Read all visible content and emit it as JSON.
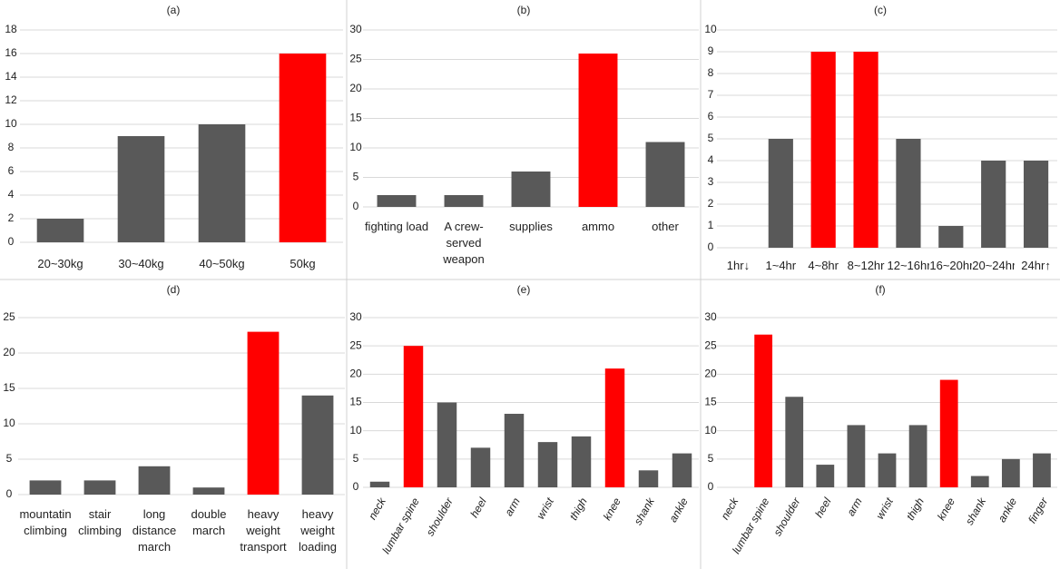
{
  "chart_data": [
    {
      "type": "bar",
      "title": "(a)",
      "categories": [
        "20~30kg",
        "30~40kg",
        "40~50kg",
        "50kg"
      ],
      "values": [
        2,
        9,
        10,
        16
      ],
      "colors": [
        "#595959",
        "#595959",
        "#595959",
        "#ff0000"
      ],
      "ylim": [
        0,
        18
      ],
      "yticks": [
        0,
        2,
        4,
        6,
        8,
        10,
        12,
        14,
        16,
        18
      ],
      "grid": true
    },
    {
      "type": "bar",
      "title": "(b)",
      "categories": [
        "fighting load",
        "A crew-served weapon",
        "supplies",
        "ammo",
        "other"
      ],
      "values": [
        2,
        2,
        6,
        26,
        11
      ],
      "colors": [
        "#595959",
        "#595959",
        "#595959",
        "#ff0000",
        "#595959"
      ],
      "ylim": [
        0,
        30
      ],
      "yticks": [
        0,
        5,
        10,
        15,
        20,
        25,
        30
      ],
      "grid": true
    },
    {
      "type": "bar",
      "title": "(c)",
      "categories": [
        "1hr↓",
        "1~4hr",
        "4~8hr",
        "8~12hr",
        "12~16hr",
        "16~20hr",
        "20~24hr",
        "24hr↑"
      ],
      "values": [
        0,
        5,
        9,
        9,
        5,
        1,
        4,
        4
      ],
      "colors": [
        "#595959",
        "#595959",
        "#ff0000",
        "#ff0000",
        "#595959",
        "#595959",
        "#595959",
        "#595959"
      ],
      "ylim": [
        0,
        10
      ],
      "yticks": [
        0,
        1,
        2,
        3,
        4,
        5,
        6,
        7,
        8,
        9,
        10
      ],
      "grid": true
    },
    {
      "type": "bar",
      "title": "(d)",
      "categories": [
        "mountatin climbing",
        "stair climbing",
        "long distance march",
        "double march",
        "heavy weight transport",
        "heavy weight loading"
      ],
      "values": [
        2,
        2,
        4,
        1,
        23,
        14
      ],
      "colors": [
        "#595959",
        "#595959",
        "#595959",
        "#595959",
        "#ff0000",
        "#595959"
      ],
      "ylim": [
        0,
        25
      ],
      "yticks": [
        0,
        5,
        10,
        15,
        20,
        25
      ],
      "grid": true
    },
    {
      "type": "bar",
      "title": "(e)",
      "categories": [
        "neck",
        "lumbar spine",
        "shoulder",
        "heel",
        "arm",
        "wrist",
        "thigh",
        "knee",
        "shank",
        "ankle"
      ],
      "values": [
        1,
        25,
        15,
        7,
        13,
        8,
        9,
        21,
        3,
        6
      ],
      "colors": [
        "#595959",
        "#ff0000",
        "#595959",
        "#595959",
        "#595959",
        "#595959",
        "#595959",
        "#ff0000",
        "#595959",
        "#595959"
      ],
      "ylim": [
        0,
        30
      ],
      "yticks": [
        0,
        5,
        10,
        15,
        20,
        25,
        30
      ],
      "grid": true
    },
    {
      "type": "bar",
      "title": "(f)",
      "categories": [
        "neck",
        "lumbar spine",
        "shoulder",
        "heel",
        "arm",
        "wrist",
        "thigh",
        "knee",
        "shank",
        "ankle",
        "finger"
      ],
      "values": [
        0,
        27,
        16,
        4,
        11,
        6,
        11,
        19,
        2,
        5,
        6
      ],
      "colors": [
        "#595959",
        "#ff0000",
        "#595959",
        "#595959",
        "#595959",
        "#595959",
        "#595959",
        "#ff0000",
        "#595959",
        "#595959",
        "#595959"
      ],
      "ylim": [
        0,
        30
      ],
      "yticks": [
        0,
        5,
        10,
        15,
        20,
        25,
        30
      ],
      "grid": true
    }
  ]
}
